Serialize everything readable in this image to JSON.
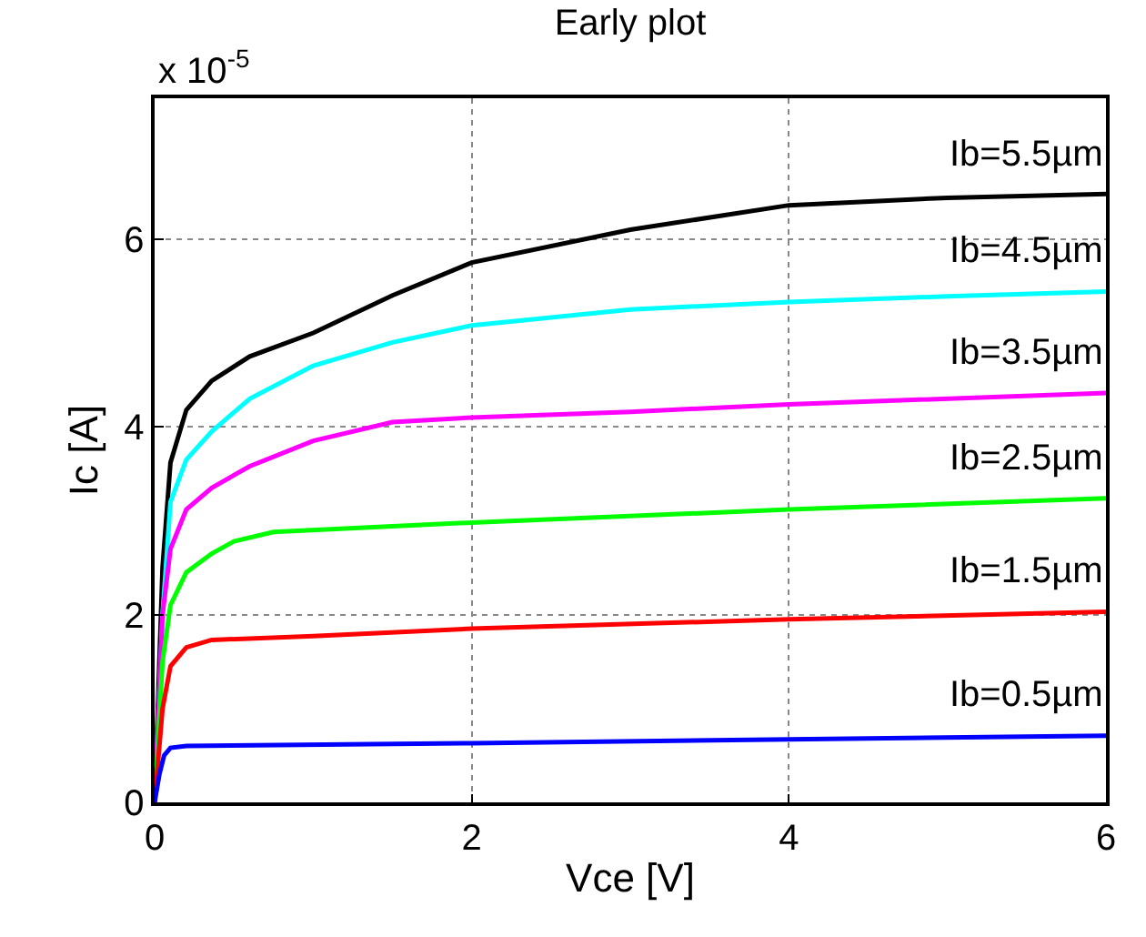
{
  "chart_data": {
    "type": "line",
    "title": "Early plot",
    "xlabel": "Vce [V]",
    "ylabel": "Ic [A]",
    "annotations": [
      "x 10$^{-5}$"
    ],
    "xlim": [
      0,
      6
    ],
    "xticks": [
      0,
      2,
      4,
      6
    ],
    "ylim": [
      0,
      7.5
    ],
    "yticks": [
      0,
      2,
      4,
      6
    ],
    "grid": true,
    "legend": false,
    "line_style": "solid",
    "marker": "none",
    "series": [
      {
        "name": "Ib=5.5µm",
        "color": "#000000",
        "x": [
          0,
          0.05,
          0.1,
          0.2,
          0.36,
          0.6,
          1,
          1.5,
          2,
          3,
          4,
          5,
          6
        ],
        "values": [
          0,
          2.5,
          3.62,
          4.18,
          4.49,
          4.75,
          5.0,
          5.4,
          5.75,
          6.1,
          6.36,
          6.44,
          6.48
        ]
      },
      {
        "name": "Ib=4.5µm",
        "color": "#00ffff",
        "x": [
          0,
          0.05,
          0.1,
          0.2,
          0.36,
          0.6,
          1,
          1.5,
          2,
          3,
          4,
          5,
          6
        ],
        "values": [
          0,
          2.0,
          3.2,
          3.65,
          3.95,
          4.3,
          4.65,
          4.9,
          5.08,
          5.25,
          5.33,
          5.39,
          5.44
        ]
      },
      {
        "name": "Ib=3.5µm",
        "color": "#ff00ff",
        "x": [
          0,
          0.05,
          0.1,
          0.2,
          0.36,
          0.6,
          1,
          1.5,
          2,
          3,
          4,
          6
        ],
        "values": [
          0,
          2.0,
          2.7,
          3.12,
          3.35,
          3.58,
          3.85,
          4.05,
          4.1,
          4.16,
          4.24,
          4.36
        ]
      },
      {
        "name": "Ib=2.5µm",
        "color": "#00ff00",
        "x": [
          0,
          0.05,
          0.1,
          0.2,
          0.36,
          0.5,
          0.75,
          2,
          4,
          6
        ],
        "values": [
          0,
          1.5,
          2.1,
          2.45,
          2.65,
          2.78,
          2.88,
          2.98,
          3.12,
          3.24
        ]
      },
      {
        "name": "Ib=1.5µm",
        "color": "#ff0000",
        "x": [
          0,
          0.05,
          0.1,
          0.2,
          0.36,
          1,
          2,
          4,
          6
        ],
        "values": [
          0,
          1.0,
          1.45,
          1.65,
          1.73,
          1.77,
          1.85,
          1.95,
          2.03
        ]
      },
      {
        "name": "Ib=0.5µm",
        "color": "#0000ff",
        "x": [
          0,
          0.03,
          0.06,
          0.1,
          0.2,
          2,
          4,
          6
        ],
        "values": [
          0,
          0.3,
          0.5,
          0.58,
          0.6,
          0.63,
          0.67,
          0.71
        ]
      }
    ]
  }
}
